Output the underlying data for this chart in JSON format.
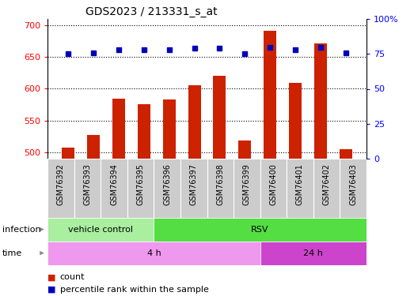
{
  "title": "GDS2023 / 213331_s_at",
  "samples": [
    "GSM76392",
    "GSM76393",
    "GSM76394",
    "GSM76395",
    "GSM76396",
    "GSM76397",
    "GSM76398",
    "GSM76399",
    "GSM76400",
    "GSM76401",
    "GSM76402",
    "GSM76403"
  ],
  "counts": [
    507,
    527,
    584,
    576,
    583,
    606,
    621,
    518,
    692,
    609,
    672,
    505
  ],
  "percentile_ranks": [
    75,
    76,
    78,
    78,
    78,
    79,
    79,
    75,
    80,
    78,
    80,
    76
  ],
  "ylim_left": [
    490,
    710
  ],
  "ylim_right": [
    0,
    100
  ],
  "yticks_left": [
    500,
    550,
    600,
    650,
    700
  ],
  "yticks_right": [
    0,
    25,
    50,
    75,
    100
  ],
  "ytick_right_labels": [
    "0",
    "25",
    "50",
    "75",
    "100%"
  ],
  "bar_color": "#cc2200",
  "dot_color": "#0000bb",
  "grid_linestyle": "dotted",
  "grid_linewidth": 0.8,
  "infection_groups": [
    {
      "label": "vehicle control",
      "start": 0,
      "end": 4,
      "color": "#aaeea0"
    },
    {
      "label": "RSV",
      "start": 4,
      "end": 12,
      "color": "#55dd44"
    }
  ],
  "time_groups": [
    {
      "label": "4 h",
      "start": 0,
      "end": 8,
      "color": "#ee99ee"
    },
    {
      "label": "24 h",
      "start": 8,
      "end": 12,
      "color": "#cc44cc"
    }
  ],
  "sample_bg_color": "#cccccc",
  "legend_items": [
    {
      "label": "count",
      "color": "#cc2200"
    },
    {
      "label": "percentile rank within the sample",
      "color": "#0000bb"
    }
  ],
  "title_fontsize": 10,
  "tick_fontsize": 8,
  "label_fontsize": 8,
  "row_label_fontsize": 8,
  "annotation_fontsize": 8
}
